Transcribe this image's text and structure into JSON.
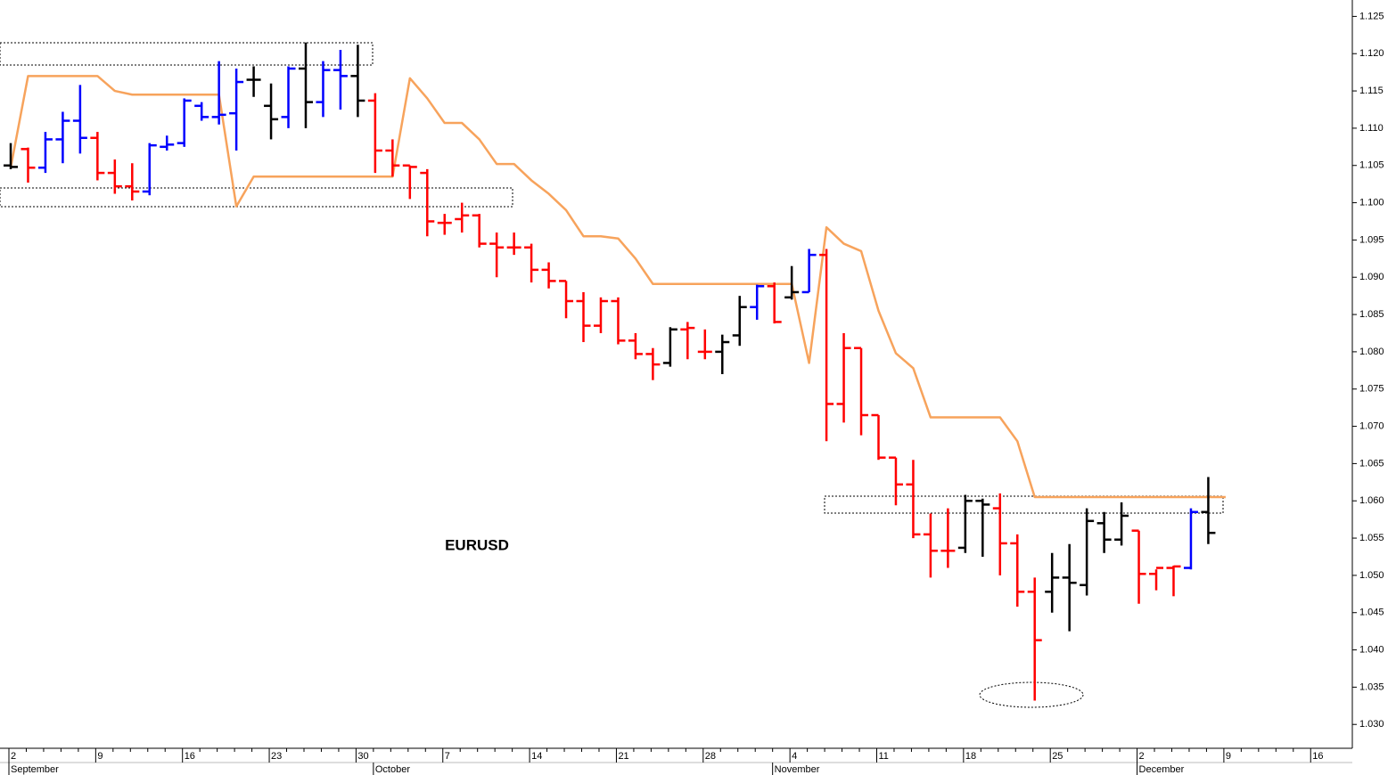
{
  "chart_data": {
    "type": "ohlc",
    "label": "EURUSD",
    "categories": [
      "2",
      null,
      null,
      null,
      null,
      "9",
      null,
      null,
      null,
      null,
      "16",
      null,
      null,
      null,
      null,
      "23",
      null,
      null,
      null,
      null,
      "30",
      null,
      null,
      null,
      null,
      "7",
      null,
      null,
      null,
      null,
      "14",
      null,
      null,
      null,
      null,
      "21",
      null,
      null,
      null,
      null,
      "28",
      null,
      null,
      null,
      null,
      "4",
      null,
      null,
      null,
      null,
      "11",
      null,
      null,
      null,
      null,
      "18",
      null,
      null,
      null,
      null,
      "25",
      null,
      null,
      null,
      null,
      "2",
      null,
      null,
      null,
      null,
      "9",
      null,
      null,
      null,
      null,
      "16"
    ],
    "month_labels": [
      "September",
      null,
      null,
      null,
      null,
      null,
      null,
      null,
      null,
      null,
      null,
      null,
      null,
      null,
      null,
      null,
      null,
      null,
      null,
      null,
      null,
      "October",
      null,
      null,
      null,
      null,
      null,
      null,
      null,
      null,
      null,
      null,
      null,
      null,
      null,
      null,
      null,
      null,
      null,
      null,
      null,
      null,
      null,
      null,
      "November",
      null,
      null,
      null,
      null,
      null,
      null,
      null,
      null,
      null,
      null,
      null,
      null,
      null,
      null,
      null,
      null,
      null,
      null,
      null,
      null,
      "December",
      null,
      null,
      null,
      null,
      null,
      null,
      null,
      null,
      null,
      null
    ],
    "open": [
      1.105,
      1.1072,
      1.1047,
      1.1085,
      1.111,
      1.1087,
      1.104,
      1.1022,
      1.1015,
      1.1075,
      1.108,
      1.113,
      1.1115,
      1.112,
      1.1165,
      1.113,
      1.1115,
      1.118,
      1.1135,
      1.1178,
      1.117,
      1.1137,
      1.107,
      1.105,
      1.104,
      1.0973,
      1.0978,
      1.0983,
      1.0945,
      1.094,
      1.094,
      1.091,
      1.0895,
      1.0868,
      1.0835,
      1.0868,
      1.0815,
      1.0797,
      1.0785,
      1.083,
      1.08,
      1.08,
      1.0822,
      1.086,
      1.0888,
      1.0873,
      1.088,
      1.093,
      1.073,
      1.0805,
      1.0715,
      1.0658,
      1.0622,
      1.0555,
      1.0533,
      1.0537,
      1.06,
      1.059,
      1.0543,
      1.0478,
      1.0478,
      1.0497,
      1.0487,
      1.057,
      1.0548,
      1.056,
      1.0502,
      1.051,
      1.051,
      1.0585,
      null,
      null,
      null,
      null,
      null,
      null
    ],
    "high": [
      1.108,
      1.1074,
      1.1095,
      1.1122,
      1.1158,
      1.1095,
      1.1058,
      1.1053,
      1.108,
      1.109,
      1.114,
      1.1135,
      1.119,
      1.118,
      1.1183,
      1.116,
      1.1183,
      1.1215,
      1.119,
      1.1205,
      1.1212,
      1.1147,
      1.1085,
      1.105,
      1.1045,
      1.0985,
      1.1,
      1.0985,
      1.096,
      1.096,
      1.0945,
      1.092,
      1.0895,
      1.088,
      1.0873,
      1.0873,
      1.0825,
      1.0805,
      1.0833,
      1.084,
      1.083,
      1.0823,
      1.0875,
      1.089,
      1.0893,
      1.0915,
      1.0938,
      1.0938,
      1.0825,
      1.0805,
      1.0715,
      1.0658,
      1.0655,
      1.0583,
      1.059,
      1.0608,
      1.0603,
      1.061,
      1.0555,
      1.0497,
      1.053,
      1.0542,
      1.059,
      1.0585,
      1.0598,
      1.056,
      1.0508,
      1.0513,
      1.059,
      1.0632,
      null,
      null,
      null,
      null,
      null,
      null
    ],
    "low": [
      1.1045,
      1.1027,
      1.104,
      1.1053,
      1.1066,
      1.103,
      1.1012,
      1.1003,
      1.101,
      1.107,
      1.1075,
      1.111,
      1.1105,
      1.107,
      1.1142,
      1.1085,
      1.11,
      1.11,
      1.1115,
      1.1125,
      1.1115,
      1.104,
      1.1035,
      1.1005,
      1.0955,
      1.0957,
      1.096,
      1.094,
      1.09,
      1.093,
      1.0893,
      1.0885,
      1.0845,
      1.0813,
      1.0825,
      1.081,
      1.079,
      1.0762,
      1.078,
      1.079,
      1.079,
      1.077,
      1.0808,
      1.0843,
      1.0838,
      1.087,
      1.088,
      1.068,
      1.0705,
      1.0688,
      1.0655,
      1.0594,
      1.055,
      1.0497,
      1.051,
      1.053,
      1.0525,
      1.05,
      1.0458,
      1.0332,
      1.045,
      1.0425,
      1.0473,
      1.053,
      1.054,
      1.0462,
      1.048,
      1.0472,
      1.0508,
      1.0542,
      null,
      null,
      null,
      null,
      null,
      null
    ],
    "close": [
      1.1048,
      1.1047,
      1.1085,
      1.111,
      1.1087,
      1.104,
      1.1022,
      1.1015,
      1.1077,
      1.1078,
      1.1137,
      1.1115,
      1.1118,
      1.1162,
      1.1165,
      1.1112,
      1.118,
      1.1135,
      1.1178,
      1.117,
      1.1137,
      1.107,
      1.105,
      1.1048,
      1.0975,
      1.0973,
      1.0983,
      1.0945,
      1.094,
      1.094,
      1.091,
      1.0895,
      1.0868,
      1.0835,
      1.0868,
      1.0815,
      1.0797,
      1.0783,
      1.083,
      1.0832,
      1.08,
      1.0813,
      1.086,
      1.0888,
      1.084,
      1.088,
      1.093,
      1.073,
      1.0805,
      1.0715,
      1.0658,
      1.0622,
      1.0555,
      1.0533,
      1.0533,
      1.06,
      1.0595,
      1.0543,
      1.0478,
      1.0413,
      1.0497,
      1.049,
      1.0573,
      1.0548,
      1.058,
      1.0502,
      1.051,
      1.0512,
      1.0585,
      1.0557,
      null,
      null,
      null,
      null,
      null,
      null
    ],
    "bar_colors": [
      "black",
      "red",
      "blue",
      "blue",
      "blue",
      "red",
      "red",
      "red",
      "blue",
      "blue",
      "blue",
      "blue",
      "blue",
      "blue",
      "black",
      "black",
      "blue",
      "black",
      "blue",
      "blue",
      "black",
      "red",
      "red",
      "red",
      "red",
      "red",
      "red",
      "red",
      "red",
      "red",
      "red",
      "red",
      "red",
      "red",
      "red",
      "red",
      "red",
      "red",
      "black",
      "red",
      "red",
      "black",
      "black",
      "blue",
      "red",
      "black",
      "blue",
      "red",
      "red",
      "red",
      "red",
      "red",
      "red",
      "red",
      "red",
      "black",
      "black",
      "red",
      "red",
      "red",
      "black",
      "black",
      "black",
      "black",
      "black",
      "red",
      "red",
      "red",
      "blue",
      "black",
      null,
      null,
      null,
      null,
      null,
      null
    ],
    "overlay": {
      "type": "line",
      "color": "#f7a35c",
      "values": [
        1.1047,
        1.117,
        1.117,
        1.117,
        1.117,
        1.117,
        1.115,
        1.1145,
        1.1145,
        1.1145,
        1.1145,
        1.1145,
        1.1145,
        1.0995,
        1.1035,
        1.1035,
        1.1035,
        1.1035,
        1.1035,
        1.1035,
        1.1035,
        1.1035,
        1.1035,
        1.1167,
        1.114,
        1.1107,
        1.1107,
        1.1085,
        1.1052,
        1.1052,
        1.103,
        1.1012,
        1.099,
        1.0955,
        1.0955,
        1.0952,
        1.0925,
        1.0891,
        1.0891,
        1.0891,
        1.0891,
        1.0891,
        1.0891,
        1.0891,
        1.0891,
        1.0891,
        1.0785,
        1.0967,
        1.0945,
        1.0935,
        1.0855,
        1.0798,
        1.0778,
        1.0712,
        1.0712,
        1.0712,
        1.0712,
        1.0712,
        1.068,
        1.0605,
        1.0605,
        1.0605,
        1.0605,
        1.0605,
        1.0605,
        1.0605,
        1.0605,
        1.0605,
        1.0605,
        1.0605,
        1.0605,
        null,
        null,
        null,
        null,
        null
      ]
    },
    "ylim": [
      1.0268,
      1.1272
    ],
    "yticks": [
      {
        "value": 1.03,
        "label": "1.030"
      },
      {
        "value": 1.035,
        "label": "1.035"
      },
      {
        "value": 1.04,
        "label": "1.040"
      },
      {
        "value": 1.045,
        "label": "1.045"
      },
      {
        "value": 1.05,
        "label": "1.050"
      },
      {
        "value": 1.055,
        "label": "1.055"
      },
      {
        "value": 1.06,
        "label": "1.060"
      },
      {
        "value": 1.065,
        "label": "1.065"
      },
      {
        "value": 1.07,
        "label": "1.070"
      },
      {
        "value": 1.075,
        "label": "1.075"
      },
      {
        "value": 1.08,
        "label": "1.080"
      },
      {
        "value": 1.085,
        "label": "1.085"
      },
      {
        "value": 1.09,
        "label": "1.090"
      },
      {
        "value": 1.095,
        "label": "1.095"
      },
      {
        "value": 1.1,
        "label": "1.100"
      },
      {
        "value": 1.105,
        "label": "1.105"
      },
      {
        "value": 1.11,
        "label": "1.110"
      },
      {
        "value": 1.115,
        "label": "1.115"
      },
      {
        "value": 1.12,
        "label": "1.120"
      },
      {
        "value": 1.125,
        "label": "1.125"
      }
    ]
  }
}
